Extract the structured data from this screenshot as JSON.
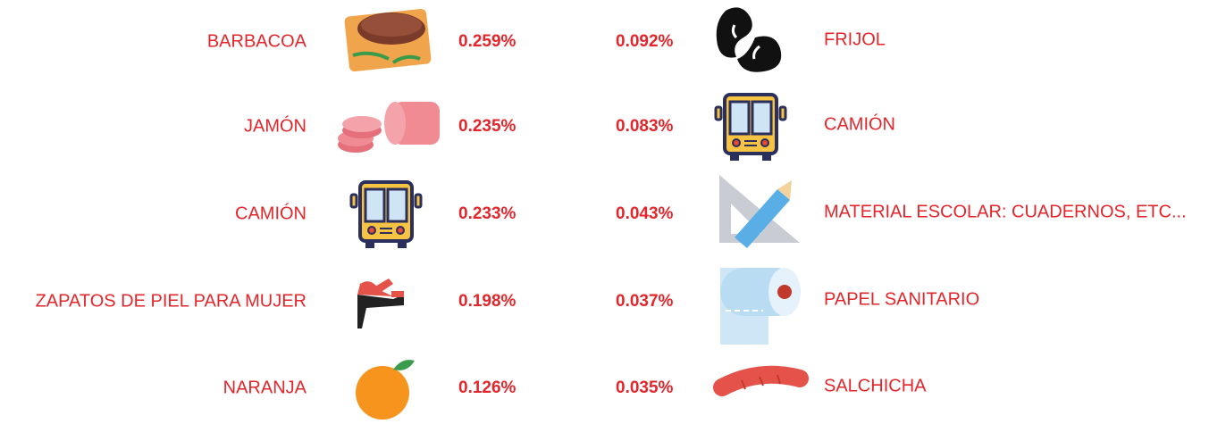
{
  "left": [
    {
      "label": "BARBACOA",
      "value": "0.259%"
    },
    {
      "label": "JAMÓN",
      "value": "0.235%"
    },
    {
      "label": "CAMIÓN",
      "value": "0.233%"
    },
    {
      "label": "ZAPATOS DE PIEL PARA MUJER",
      "value": "0.198%"
    },
    {
      "label": "NARANJA",
      "value": "0.126%"
    }
  ],
  "right": [
    {
      "label": "FRIJOL",
      "value": "0.092%"
    },
    {
      "label": "CAMIÓN",
      "value": "0.083%"
    },
    {
      "label": "MATERIAL ESCOLAR: CUADERNOS, ETC...",
      "value": "0.043%"
    },
    {
      "label": "PAPEL SANITARIO",
      "value": "0.037%"
    },
    {
      "label": "SALCHICHA",
      "value": "0.035%"
    }
  ]
}
